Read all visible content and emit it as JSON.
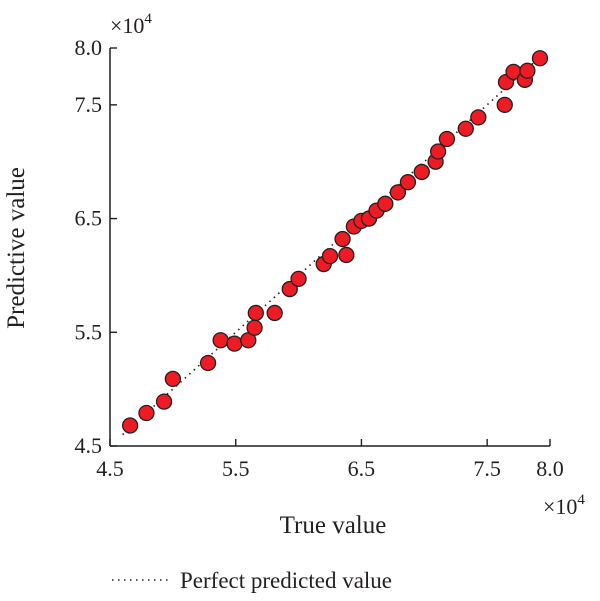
{
  "chart_data": {
    "type": "scatter",
    "title": "",
    "xlabel": "True value",
    "ylabel": "Predictive value",
    "x_multiplier": "×10",
    "y_multiplier": "×10",
    "exponent": "4",
    "xlim": [
      4.5,
      8.0
    ],
    "ylim": [
      4.5,
      8.0
    ],
    "x_ticks": [
      4.5,
      5.5,
      6.5,
      7.5,
      8.0
    ],
    "y_ticks": [
      4.5,
      5.5,
      6.5,
      7.5,
      8.0
    ],
    "x_tick_labels": [
      "4.5",
      "5.5",
      "6.5",
      "7.5",
      "8.0"
    ],
    "y_tick_labels": [
      "4.5",
      "5.5",
      "6.5",
      "7.5",
      "8.0"
    ],
    "grid": false,
    "legend_position": "bottom-center",
    "marker_color": "#ed1c24",
    "marker_edge_color": "#231f20",
    "line_color": "#231f20",
    "series": [
      {
        "type": "scatter",
        "x": [
          4.66,
          4.79,
          4.93,
          5.0,
          5.28,
          5.38,
          5.49,
          5.6,
          5.65,
          5.66,
          5.81,
          5.93,
          6.0,
          6.2,
          6.25,
          6.35,
          6.38,
          6.44,
          6.5,
          6.56,
          6.62,
          6.69,
          6.79,
          6.87,
          6.98,
          7.09,
          7.11,
          7.18,
          7.33,
          7.43,
          7.64,
          7.65,
          7.71,
          7.8,
          7.82,
          7.92
        ],
        "y": [
          4.68,
          4.79,
          4.89,
          5.09,
          5.23,
          5.43,
          5.4,
          5.43,
          5.54,
          5.67,
          5.67,
          5.88,
          5.97,
          6.1,
          6.17,
          6.32,
          6.18,
          6.43,
          6.48,
          6.5,
          6.57,
          6.63,
          6.73,
          6.82,
          6.91,
          7.0,
          7.09,
          7.2,
          7.29,
          7.39,
          7.5,
          7.7,
          7.79,
          7.72,
          7.8,
          7.91
        ]
      },
      {
        "type": "line",
        "name": "Perfect predicted value",
        "style": "dotted",
        "x": [
          4.6,
          7.95
        ],
        "y": [
          4.6,
          7.95
        ]
      }
    ]
  }
}
